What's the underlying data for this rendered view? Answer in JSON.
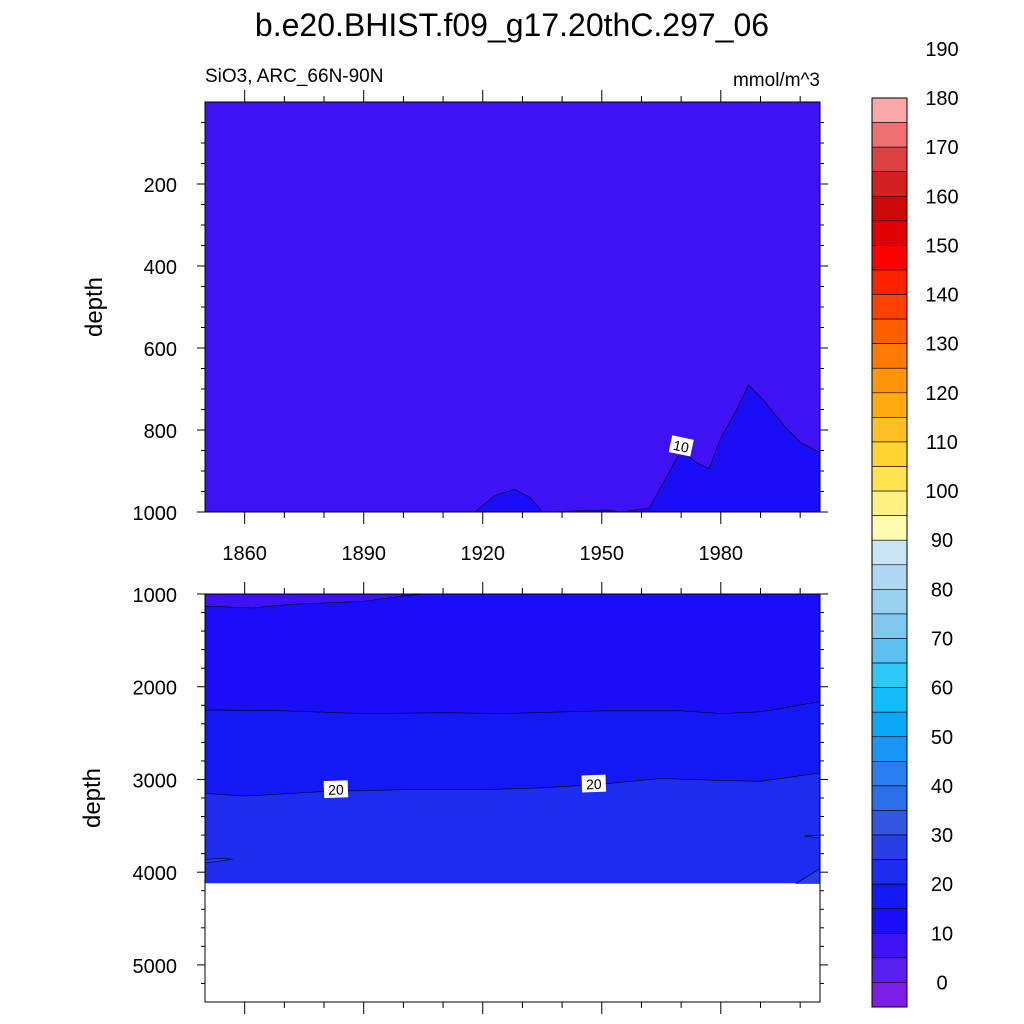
{
  "chart_data": {
    "type": "heatmap",
    "title": "b.e20.BHIST.f09_g17.20thC.297_06",
    "subtitle_left": "SiO3, ARC_66N-90N",
    "units": "mmol/m^3",
    "x_tick_labels": [
      "1860",
      "1890",
      "1920",
      "1950",
      "1980"
    ],
    "x_ticks": [
      1860,
      1890,
      1920,
      1950,
      1980
    ],
    "xlim": [
      1850,
      2005
    ],
    "upper_panel": {
      "ylabel": "depth",
      "ylim": [
        1000,
        0
      ],
      "y_ticks": [
        200,
        400,
        600,
        800,
        1000
      ],
      "y_tick_labels": [
        "200",
        "400",
        "600",
        "800",
        "1000"
      ],
      "contour_labels": [
        {
          "text": "10",
          "year": 1970,
          "depth": 840
        }
      ],
      "contour_10_outline": [
        {
          "year": 1918,
          "depth": 1000
        },
        {
          "year": 1923,
          "depth": 960
        },
        {
          "year": 1928,
          "depth": 945
        },
        {
          "year": 1932,
          "depth": 965
        },
        {
          "year": 1935,
          "depth": 1000
        },
        {
          "year": 1951,
          "depth": 995
        },
        {
          "year": 1955,
          "depth": 1000
        },
        {
          "year": 1962,
          "depth": 990
        },
        {
          "year": 1966,
          "depth": 920
        },
        {
          "year": 1970,
          "depth": 850
        },
        {
          "year": 1974,
          "depth": 880
        },
        {
          "year": 1977,
          "depth": 895
        },
        {
          "year": 1980,
          "depth": 820
        },
        {
          "year": 1984,
          "depth": 750
        },
        {
          "year": 1987,
          "depth": 690
        },
        {
          "year": 1991,
          "depth": 730
        },
        {
          "year": 1996,
          "depth": 790
        },
        {
          "year": 2000,
          "depth": 830
        },
        {
          "year": 2005,
          "depth": 855
        }
      ]
    },
    "lower_panel": {
      "ylabel": "depth",
      "ylim": [
        5400,
        1000
      ],
      "y_ticks": [
        1000,
        2000,
        3000,
        4000,
        5000
      ],
      "y_tick_labels": [
        "1000",
        "2000",
        "3000",
        "4000",
        "5000"
      ],
      "ocean_floor_depth": 4120,
      "contour_labels": [
        {
          "text": "20",
          "year": 1883,
          "depth": 3110
        },
        {
          "text": "20",
          "year": 1948,
          "depth": 3050
        }
      ],
      "band_bottoms": {
        "5_10": [
          {
            "year": 1850,
            "depth": 1130
          },
          {
            "year": 1862,
            "depth": 1150
          },
          {
            "year": 1872,
            "depth": 1110
          },
          {
            "year": 1890,
            "depth": 1080
          },
          {
            "year": 1900,
            "depth": 1020
          },
          {
            "year": 1905,
            "depth": 1000
          }
        ],
        "10_15": [
          {
            "year": 1850,
            "depth": 2250
          },
          {
            "year": 1870,
            "depth": 2260
          },
          {
            "year": 1890,
            "depth": 2290
          },
          {
            "year": 1910,
            "depth": 2280
          },
          {
            "year": 1925,
            "depth": 2290
          },
          {
            "year": 1950,
            "depth": 2260
          },
          {
            "year": 1970,
            "depth": 2260
          },
          {
            "year": 1980,
            "depth": 2290
          },
          {
            "year": 1990,
            "depth": 2270
          },
          {
            "year": 2005,
            "depth": 2160
          }
        ],
        "15_20": [
          {
            "year": 1850,
            "depth": 3150
          },
          {
            "year": 1860,
            "depth": 3180
          },
          {
            "year": 1880,
            "depth": 3130
          },
          {
            "year": 1900,
            "depth": 3110
          },
          {
            "year": 1920,
            "depth": 3110
          },
          {
            "year": 1935,
            "depth": 3090
          },
          {
            "year": 1950,
            "depth": 3050
          },
          {
            "year": 1965,
            "depth": 2990
          },
          {
            "year": 1980,
            "depth": 3010
          },
          {
            "year": 1990,
            "depth": 3020
          },
          {
            "year": 2005,
            "depth": 2930
          }
        ]
      }
    },
    "colorbar": {
      "labels": [
        "0",
        "10",
        "20",
        "30",
        "40",
        "50",
        "60",
        "70",
        "80",
        "90",
        "100",
        "110",
        "120",
        "130",
        "140",
        "150",
        "160",
        "170",
        "180",
        "190"
      ],
      "colors": [
        "#7b1fe8",
        "#5a1ff0",
        "#3f12f5",
        "#1a0ef8",
        "#1418f4",
        "#1c2cf0",
        "#2a3ee6",
        "#3355e0",
        "#2d6ee8",
        "#2a7ff0",
        "#1a95f8",
        "#0aa8fb",
        "#12bcfb",
        "#2ccaf8",
        "#5cc0f0",
        "#80c8f0",
        "#98d0f0",
        "#b0d8f2",
        "#c8e4f5",
        "#fffcb0",
        "#fff080",
        "#ffe450",
        "#ffd430",
        "#ffbf20",
        "#ffaa10",
        "#ff9508",
        "#ff7a00",
        "#ff5e00",
        "#ff4000",
        "#ff2000",
        "#ff0000",
        "#e00000",
        "#cc0808",
        "#d42020",
        "#dd4040",
        "#ee7070",
        "#f8a8a8"
      ]
    }
  }
}
